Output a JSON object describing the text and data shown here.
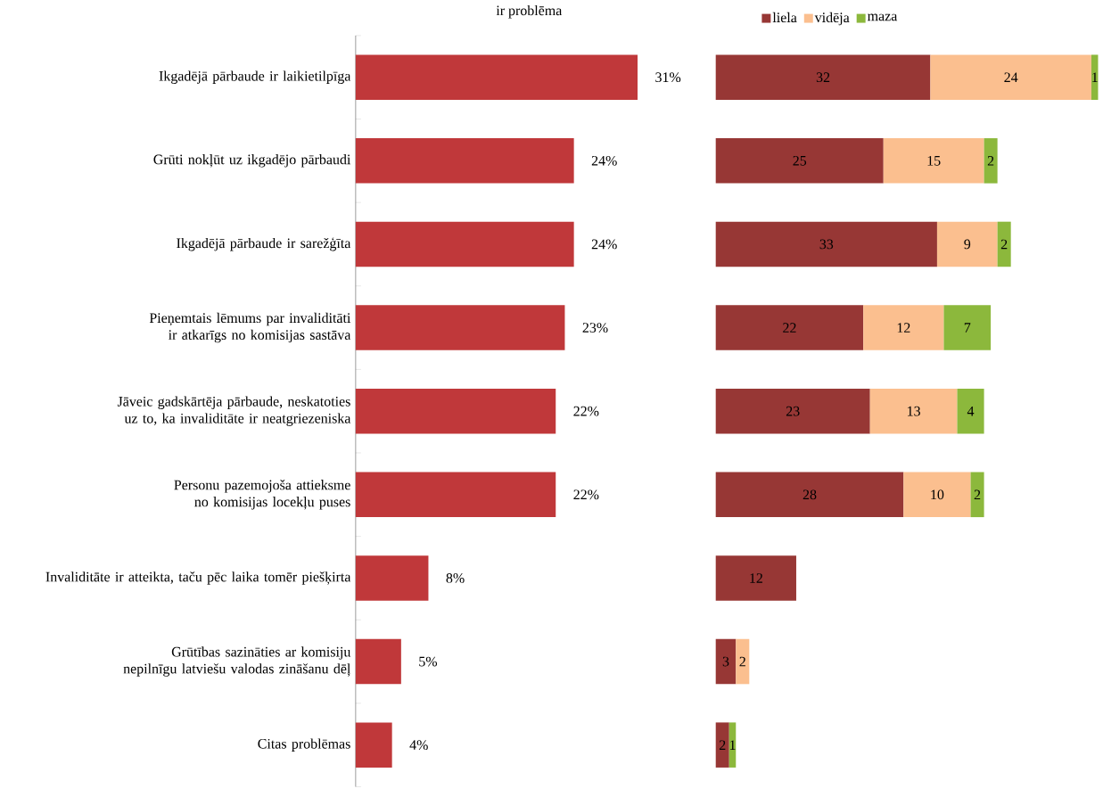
{
  "chart_data": [
    {
      "type": "bar",
      "orientation": "horizontal",
      "title": "ir problēma",
      "categories": [
        "Ikgadējā pārbaude ir laikietilpīga",
        "Grūti nokļūt uz ikgadējo pārbaudi",
        "Ikgadējā pārbaude ir sarežģīta",
        "Pieņemtais lēmums par invaliditāti ir atkarīgs no komisijas sastāva",
        "Jāveic gadskārtēja pārbaude, neskatoties uz to, ka invaliditāte ir neatgriezeniska",
        "Personu pazemojoša attieksme no komisijas locekļu puses",
        "Invaliditāte ir atteikta, taču pēc laika tomēr piešķirta",
        "Grūtības sazināties ar komisiju nepilnīgu latviešu valodas zināšanu dēļ",
        "Citas problēmas"
      ],
      "values": [
        31,
        24,
        24,
        23,
        22,
        22,
        8,
        5,
        4
      ],
      "value_labels": [
        "31%",
        "24%",
        "24%",
        "23%",
        "22%",
        "22%",
        "8%",
        "5%",
        "4%"
      ],
      "color": "#c0383a",
      "tick_labels": "y"
    },
    {
      "type": "bar",
      "orientation": "horizontal",
      "stacked": true,
      "data_labels": true,
      "legend": "top",
      "tick_labels": false,
      "categories": [
        null,
        null,
        null,
        null,
        null,
        null,
        null,
        null,
        null
      ],
      "series": [
        {
          "name": "liela",
          "color": "#973735",
          "values": [
            32,
            25,
            33,
            22,
            23,
            28,
            12,
            3,
            2
          ]
        },
        {
          "name": "vidēja",
          "color": "#fbbf8f",
          "values": [
            24,
            15,
            9,
            12,
            13,
            10,
            null,
            2,
            null
          ]
        },
        {
          "name": "maza",
          "color": "#8cb83c",
          "values": [
            1,
            2,
            2,
            7,
            4,
            2,
            null,
            null,
            1
          ]
        }
      ]
    }
  ]
}
